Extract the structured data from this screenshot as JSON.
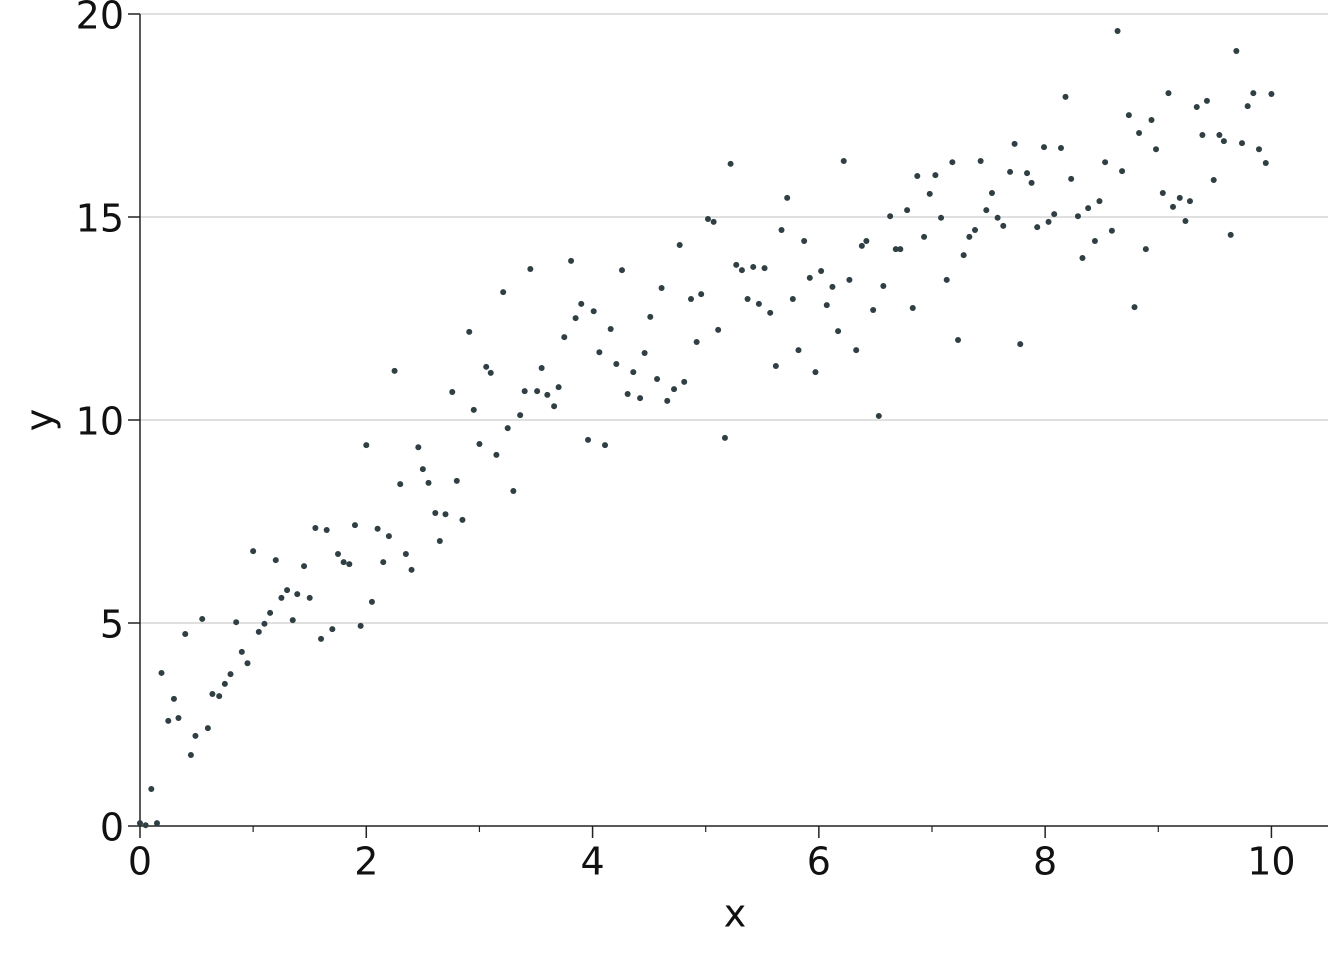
{
  "chart_data": {
    "type": "scatter",
    "x_label": "x",
    "y_label": "y",
    "color": "#2f3f44",
    "xlim": [
      0,
      10.5
    ],
    "ylim": [
      0,
      20
    ],
    "xticks": [
      0,
      2,
      4,
      6,
      8,
      10
    ],
    "xminorticks": [
      1,
      3,
      5,
      7,
      9
    ],
    "yticks": [
      0,
      5,
      10,
      15,
      20
    ],
    "grid": true,
    "x": [
      0.0,
      0.05,
      0.1,
      0.15,
      0.19,
      0.25,
      0.3,
      0.34,
      0.4,
      0.45,
      0.49,
      0.55,
      0.6,
      0.64,
      0.7,
      0.75,
      0.8,
      0.85,
      0.9,
      0.95,
      1.0,
      1.05,
      1.1,
      1.15,
      1.2,
      1.25,
      1.3,
      1.35,
      1.39,
      1.45,
      1.5,
      1.55,
      1.6,
      1.65,
      1.7,
      1.75,
      1.8,
      1.85,
      1.9,
      1.95,
      2.0,
      2.05,
      2.1,
      2.15,
      2.2,
      2.25,
      2.3,
      2.35,
      2.4,
      2.46,
      2.5,
      2.55,
      2.61,
      2.65,
      2.7,
      2.76,
      2.8,
      2.85,
      2.91,
      2.95,
      3.0,
      3.06,
      3.1,
      3.15,
      3.21,
      3.25,
      3.3,
      3.36,
      3.4,
      3.45,
      3.51,
      3.55,
      3.6,
      3.66,
      3.7,
      3.75,
      3.81,
      3.85,
      3.9,
      3.96,
      4.01,
      4.06,
      4.11,
      4.16,
      4.21,
      4.26,
      4.31,
      4.36,
      4.42,
      4.46,
      4.51,
      4.57,
      4.61,
      4.66,
      4.72,
      4.77,
      4.81,
      4.87,
      4.92,
      4.96,
      5.02,
      5.07,
      5.11,
      5.17,
      5.22,
      5.27,
      5.32,
      5.37,
      5.42,
      5.47,
      5.52,
      5.57,
      5.62,
      5.67,
      5.72,
      5.77,
      5.82,
      5.87,
      5.92,
      5.97,
      6.02,
      6.07,
      6.12,
      6.17,
      6.22,
      6.27,
      6.33,
      6.38,
      6.42,
      6.48,
      6.53,
      6.57,
      6.63,
      6.68,
      6.72,
      6.78,
      6.83,
      6.87,
      6.93,
      6.98,
      7.03,
      7.08,
      7.13,
      7.18,
      7.23,
      7.28,
      7.33,
      7.38,
      7.43,
      7.48,
      7.53,
      7.58,
      7.63,
      7.69,
      7.73,
      7.78,
      7.84,
      7.88,
      7.93,
      7.99,
      8.03,
      8.08,
      8.14,
      8.18,
      8.23,
      8.29,
      8.33,
      8.38,
      8.44,
      8.48,
      8.53,
      8.59,
      8.64,
      8.68,
      8.74,
      8.79,
      8.83,
      8.89,
      8.94,
      8.98,
      9.04,
      9.09,
      9.13,
      9.19,
      9.24,
      9.28,
      9.34,
      9.39,
      9.43,
      9.49,
      9.54,
      9.58,
      9.64,
      9.69,
      9.74,
      9.79,
      9.84,
      9.89,
      9.95,
      10.0
    ],
    "y": [
      0.07,
      0.02,
      0.91,
      0.07,
      3.77,
      2.59,
      3.13,
      2.66,
      4.73,
      1.75,
      2.22,
      5.1,
      2.41,
      3.25,
      3.2,
      3.5,
      3.74,
      5.02,
      4.29,
      4.01,
      6.77,
      4.78,
      4.98,
      5.25,
      6.55,
      5.62,
      5.81,
      5.07,
      5.71,
      6.4,
      5.62,
      7.34,
      4.61,
      7.29,
      4.85,
      6.7,
      6.5,
      6.45,
      7.41,
      4.93,
      9.38,
      5.52,
      7.32,
      6.5,
      7.14,
      11.21,
      8.42,
      6.7,
      6.31,
      9.33,
      8.79,
      8.45,
      7.71,
      7.02,
      7.68,
      10.69,
      8.5,
      7.54,
      12.17,
      10.25,
      9.41,
      11.31,
      11.16,
      9.14,
      13.15,
      9.8,
      8.25,
      10.12,
      10.71,
      13.72,
      10.71,
      11.28,
      10.62,
      10.34,
      10.81,
      12.04,
      13.92,
      12.51,
      12.86,
      9.51,
      12.68,
      11.67,
      9.38,
      12.24,
      11.38,
      13.69,
      10.64,
      11.18,
      10.54,
      11.65,
      12.54,
      11.01,
      13.25,
      10.47,
      10.76,
      14.31,
      10.94,
      12.98,
      11.92,
      13.1,
      14.95,
      14.88,
      12.22,
      9.56,
      16.31,
      13.82,
      13.69,
      12.98,
      13.77,
      12.86,
      13.74,
      12.64,
      11.33,
      14.68,
      15.47,
      12.98,
      11.72,
      14.41,
      13.5,
      11.18,
      13.67,
      12.83,
      13.28,
      12.19,
      16.38,
      13.45,
      11.72,
      14.29,
      14.41,
      12.71,
      10.1,
      13.3,
      15.02,
      14.21,
      14.21,
      15.17,
      12.76,
      16.01,
      14.51,
      15.57,
      16.03,
      14.98,
      13.45,
      16.35,
      11.97,
      14.06,
      14.51,
      14.68,
      16.38,
      15.17,
      15.59,
      14.98,
      14.78,
      16.11,
      16.8,
      11.87,
      16.08,
      15.84,
      14.75,
      16.72,
      14.88,
      15.07,
      16.7,
      17.96,
      15.94,
      15.02,
      13.99,
      15.22,
      14.41,
      15.39,
      16.35,
      14.66,
      19.58,
      16.13,
      17.51,
      12.78,
      17.07,
      14.21,
      17.39,
      16.67,
      15.59,
      18.05,
      15.25,
      15.47,
      14.9,
      15.39,
      17.71,
      17.02,
      17.86,
      15.91,
      17.02,
      16.87,
      14.56,
      19.09,
      16.82,
      17.73,
      18.05,
      16.67,
      16.33,
      18.03
    ]
  }
}
